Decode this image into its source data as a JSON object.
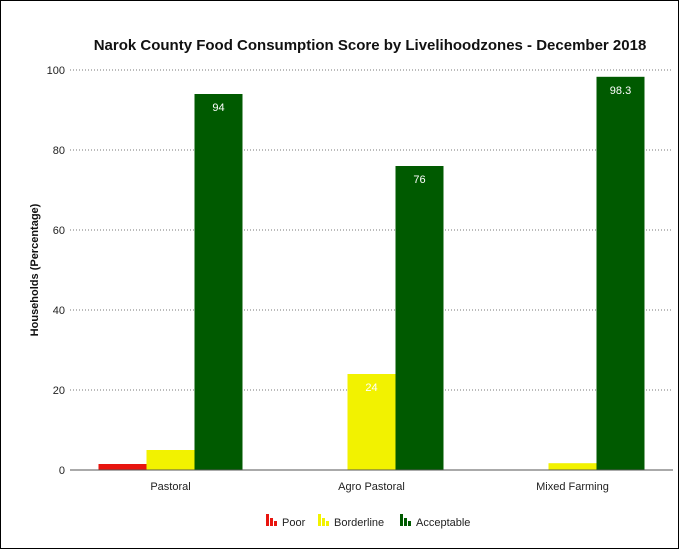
{
  "chart_data": {
    "type": "bar",
    "title": "Narok County Food Consumption Score by Livelihoodzones - December 2018",
    "xlabel": "",
    "ylabel": "Households (Percentage)",
    "ylim": [
      0,
      100
    ],
    "yticks": [
      "0",
      "20",
      "40",
      "60",
      "80",
      "100"
    ],
    "grid": true,
    "legend_position": "bottom",
    "categories": [
      "Pastoral",
      "Agro Pastoral",
      "Mixed Farming"
    ],
    "series": [
      {
        "name": "Poor",
        "color": "#e8150f",
        "values": [
          1.5,
          0,
          0
        ],
        "labels": [
          "",
          "",
          ""
        ]
      },
      {
        "name": "Borderline",
        "color": "#f2f200",
        "values": [
          5,
          24,
          1.7
        ],
        "labels": [
          "",
          "24",
          ""
        ]
      },
      {
        "name": "Acceptable",
        "color": "#005a00",
        "values": [
          94,
          76,
          98.3
        ],
        "labels": [
          "94",
          "76",
          "98.3"
        ]
      }
    ]
  }
}
